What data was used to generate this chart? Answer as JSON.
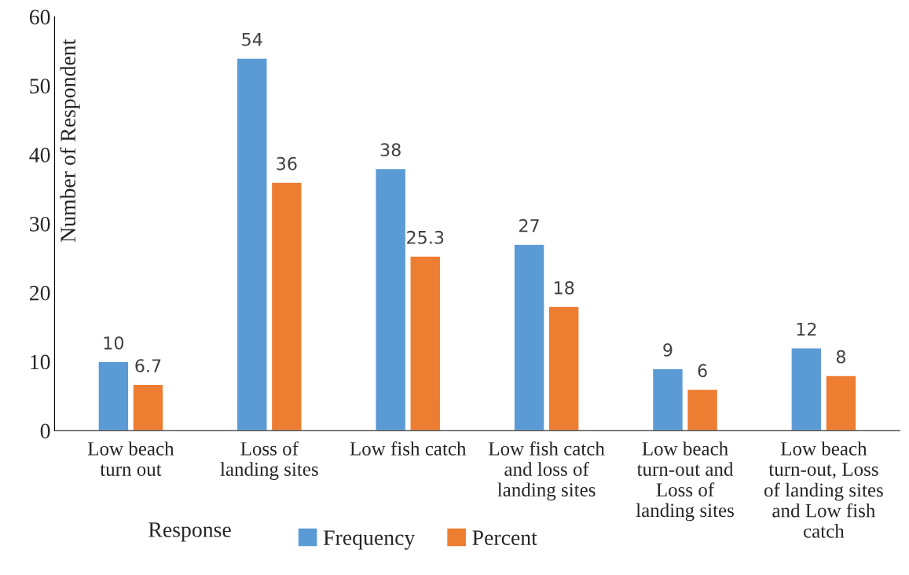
{
  "chart_data": {
    "type": "bar",
    "xlabel": "Response",
    "ylabel": "Number of Respondent",
    "categories": [
      "Low beach\nturn out",
      "Loss of\nlanding sites",
      "Low fish catch",
      "Low fish catch\nand loss of\nlanding sites",
      "Low beach\nturn-out and\nLoss of\nlanding sites",
      "Low beach\nturn-out, Loss\nof landing sites\nand Low fish\ncatch"
    ],
    "series": [
      {
        "name": "Frequency",
        "color": "#5b9bd5",
        "values": [
          10,
          54,
          38,
          27,
          9,
          12
        ]
      },
      {
        "name": "Percent",
        "color": "#ed7d31",
        "values": [
          6.7,
          36,
          25.3,
          18,
          6,
          8
        ]
      }
    ],
    "ylim": [
      0,
      60
    ],
    "yticks": [
      0,
      10,
      20,
      30,
      40,
      50,
      60
    ],
    "data_labels": true,
    "grid": false,
    "legend": "bottom"
  }
}
